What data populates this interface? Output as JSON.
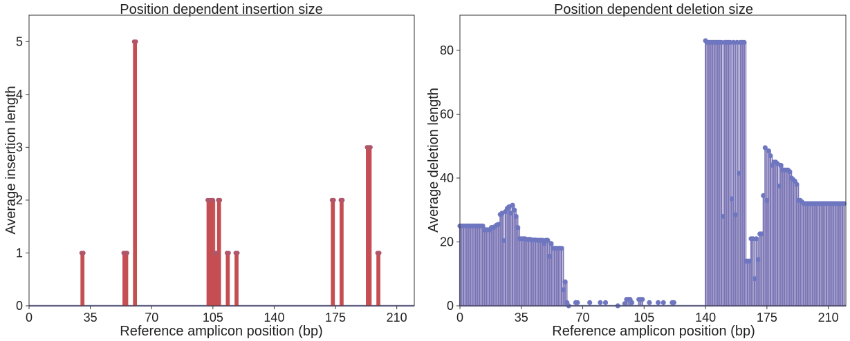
{
  "colors": {
    "insertion": "#c44e52",
    "insertion_marker": "#b0566a",
    "deletion": "#7b75b5",
    "deletion_marker": "#6f76c0",
    "baseline": "#8e8fc4"
  },
  "chart_data": [
    {
      "type": "line",
      "title": "Position dependent insertion size",
      "xlabel": "Reference amplicon position (bp)",
      "ylabel": "Average insertion length",
      "xlim": [
        0,
        220
      ],
      "ylim": [
        0,
        5.5
      ],
      "xticks": [
        0,
        35,
        70,
        105,
        140,
        175,
        210
      ],
      "yticks": [
        0,
        1,
        2,
        3,
        4,
        5
      ],
      "grid": false,
      "baseline": 0,
      "points": [
        {
          "x": 30,
          "y": 1
        },
        {
          "x": 31,
          "y": 1
        },
        {
          "x": 54,
          "y": 1
        },
        {
          "x": 55,
          "y": 1
        },
        {
          "x": 56,
          "y": 1
        },
        {
          "x": 60,
          "y": 5
        },
        {
          "x": 61,
          "y": 5
        },
        {
          "x": 102,
          "y": 2
        },
        {
          "x": 103,
          "y": 2
        },
        {
          "x": 104,
          "y": 2
        },
        {
          "x": 105,
          "y": 2
        },
        {
          "x": 106,
          "y": 1
        },
        {
          "x": 107,
          "y": 1
        },
        {
          "x": 108,
          "y": 2
        },
        {
          "x": 109,
          "y": 2
        },
        {
          "x": 113,
          "y": 1
        },
        {
          "x": 114,
          "y": 1
        },
        {
          "x": 118,
          "y": 1
        },
        {
          "x": 119,
          "y": 1
        },
        {
          "x": 173,
          "y": 2
        },
        {
          "x": 174,
          "y": 2
        },
        {
          "x": 178,
          "y": 2
        },
        {
          "x": 179,
          "y": 2
        },
        {
          "x": 193,
          "y": 3
        },
        {
          "x": 194,
          "y": 3
        },
        {
          "x": 195,
          "y": 3
        },
        {
          "x": 199,
          "y": 1
        },
        {
          "x": 200,
          "y": 1
        }
      ]
    },
    {
      "type": "line",
      "title": "Position dependent deletion size",
      "xlabel": "Reference amplicon position (bp)",
      "ylabel": "Average deletion length",
      "xlim": [
        0,
        220
      ],
      "ylim": [
        0,
        91
      ],
      "xticks": [
        0,
        35,
        70,
        105,
        140,
        175,
        210
      ],
      "yticks": [
        0,
        20,
        40,
        60,
        80
      ],
      "grid": false,
      "baseline": 0,
      "points": [
        {
          "x": 0,
          "y": 25
        },
        {
          "x": 1,
          "y": 25
        },
        {
          "x": 2,
          "y": 25
        },
        {
          "x": 3,
          "y": 25
        },
        {
          "x": 4,
          "y": 25
        },
        {
          "x": 5,
          "y": 25
        },
        {
          "x": 6,
          "y": 25
        },
        {
          "x": 7,
          "y": 25
        },
        {
          "x": 8,
          "y": 25
        },
        {
          "x": 9,
          "y": 25
        },
        {
          "x": 10,
          "y": 25
        },
        {
          "x": 11,
          "y": 25
        },
        {
          "x": 12,
          "y": 25
        },
        {
          "x": 13,
          "y": 25
        },
        {
          "x": 14,
          "y": 23.8
        },
        {
          "x": 15,
          "y": 23.8
        },
        {
          "x": 16,
          "y": 23.8
        },
        {
          "x": 17,
          "y": 23.8
        },
        {
          "x": 18,
          "y": 24.5
        },
        {
          "x": 19,
          "y": 24.5
        },
        {
          "x": 20,
          "y": 24.8
        },
        {
          "x": 21,
          "y": 25.3
        },
        {
          "x": 22,
          "y": 25.5
        },
        {
          "x": 23,
          "y": 28.6
        },
        {
          "x": 24,
          "y": 29
        },
        {
          "x": 25,
          "y": 20.4
        },
        {
          "x": 26,
          "y": 29.5
        },
        {
          "x": 27,
          "y": 30.5
        },
        {
          "x": 28,
          "y": 31
        },
        {
          "x": 29,
          "y": 29
        },
        {
          "x": 30,
          "y": 31.5
        },
        {
          "x": 31,
          "y": 30
        },
        {
          "x": 32,
          "y": 28
        },
        {
          "x": 33,
          "y": 24.5
        },
        {
          "x": 34,
          "y": 21
        },
        {
          "x": 35,
          "y": 21
        },
        {
          "x": 36,
          "y": 21
        },
        {
          "x": 37,
          "y": 21
        },
        {
          "x": 38,
          "y": 20.8
        },
        {
          "x": 39,
          "y": 20.8
        },
        {
          "x": 40,
          "y": 20.8
        },
        {
          "x": 41,
          "y": 20.6
        },
        {
          "x": 42,
          "y": 20.6
        },
        {
          "x": 43,
          "y": 20.6
        },
        {
          "x": 44,
          "y": 20.5
        },
        {
          "x": 45,
          "y": 20.5
        },
        {
          "x": 46,
          "y": 20.5
        },
        {
          "x": 47,
          "y": 20.5
        },
        {
          "x": 48,
          "y": 19.5
        },
        {
          "x": 49,
          "y": 20.5
        },
        {
          "x": 50,
          "y": 20.5
        },
        {
          "x": 51,
          "y": 15.5
        },
        {
          "x": 52,
          "y": 19.5
        },
        {
          "x": 53,
          "y": 18
        },
        {
          "x": 54,
          "y": 18
        },
        {
          "x": 55,
          "y": 18
        },
        {
          "x": 56,
          "y": 18
        },
        {
          "x": 57,
          "y": 18
        },
        {
          "x": 58,
          "y": 18
        },
        {
          "x": 59,
          "y": 5
        },
        {
          "x": 60,
          "y": 7.5
        },
        {
          "x": 61,
          "y": 1
        },
        {
          "x": 62,
          "y": 0
        },
        {
          "x": 66,
          "y": 1
        },
        {
          "x": 67,
          "y": 1
        },
        {
          "x": 74,
          "y": 1
        },
        {
          "x": 80,
          "y": 1
        },
        {
          "x": 83,
          "y": 1
        },
        {
          "x": 90,
          "y": 0
        },
        {
          "x": 94,
          "y": 0.7
        },
        {
          "x": 95,
          "y": 2
        },
        {
          "x": 96,
          "y": 2
        },
        {
          "x": 97,
          "y": 2
        },
        {
          "x": 98,
          "y": 1
        },
        {
          "x": 102,
          "y": 2
        },
        {
          "x": 103,
          "y": 2
        },
        {
          "x": 104,
          "y": 2
        },
        {
          "x": 108,
          "y": 1
        },
        {
          "x": 113,
          "y": 1
        },
        {
          "x": 116,
          "y": 1
        },
        {
          "x": 121,
          "y": 1
        },
        {
          "x": 122,
          "y": 1
        },
        {
          "x": 140,
          "y": 83
        },
        {
          "x": 141,
          "y": 82.5
        },
        {
          "x": 142,
          "y": 82.5
        },
        {
          "x": 143,
          "y": 82.5
        },
        {
          "x": 144,
          "y": 82.5
        },
        {
          "x": 145,
          "y": 82.5
        },
        {
          "x": 146,
          "y": 82.5
        },
        {
          "x": 147,
          "y": 82.5
        },
        {
          "x": 148,
          "y": 82.5
        },
        {
          "x": 149,
          "y": 82.5
        },
        {
          "x": 150,
          "y": 28
        },
        {
          "x": 151,
          "y": 82.5
        },
        {
          "x": 152,
          "y": 82.5
        },
        {
          "x": 153,
          "y": 82.5
        },
        {
          "x": 154,
          "y": 82.5
        },
        {
          "x": 155,
          "y": 33.5
        },
        {
          "x": 156,
          "y": 82.5
        },
        {
          "x": 157,
          "y": 28.5
        },
        {
          "x": 158,
          "y": 82.5
        },
        {
          "x": 159,
          "y": 41.5
        },
        {
          "x": 160,
          "y": 82.5
        },
        {
          "x": 161,
          "y": 82.5
        },
        {
          "x": 162,
          "y": 82.5
        },
        {
          "x": 163,
          "y": 14
        },
        {
          "x": 164,
          "y": 14
        },
        {
          "x": 165,
          "y": 14
        },
        {
          "x": 166,
          "y": 21
        },
        {
          "x": 167,
          "y": 21
        },
        {
          "x": 168,
          "y": 8.5
        },
        {
          "x": 169,
          "y": 21
        },
        {
          "x": 170,
          "y": 14.5
        },
        {
          "x": 171,
          "y": 22.5
        },
        {
          "x": 172,
          "y": 22.5
        },
        {
          "x": 173,
          "y": 34.5
        },
        {
          "x": 174,
          "y": 49.5
        },
        {
          "x": 175,
          "y": 33
        },
        {
          "x": 176,
          "y": 48.5
        },
        {
          "x": 177,
          "y": 47
        },
        {
          "x": 178,
          "y": 44
        },
        {
          "x": 179,
          "y": 45
        },
        {
          "x": 180,
          "y": 45
        },
        {
          "x": 181,
          "y": 44.5
        },
        {
          "x": 182,
          "y": 37.5
        },
        {
          "x": 183,
          "y": 44
        },
        {
          "x": 184,
          "y": 42.5
        },
        {
          "x": 185,
          "y": 42.5
        },
        {
          "x": 186,
          "y": 42.5
        },
        {
          "x": 187,
          "y": 42.5
        },
        {
          "x": 188,
          "y": 42
        },
        {
          "x": 189,
          "y": 40
        },
        {
          "x": 190,
          "y": 39.5
        },
        {
          "x": 191,
          "y": 39
        },
        {
          "x": 192,
          "y": 38
        },
        {
          "x": 193,
          "y": 33
        },
        {
          "x": 194,
          "y": 33
        },
        {
          "x": 195,
          "y": 32.5
        },
        {
          "x": 196,
          "y": 32
        },
        {
          "x": 197,
          "y": 32
        },
        {
          "x": 198,
          "y": 32
        },
        {
          "x": 199,
          "y": 32
        },
        {
          "x": 200,
          "y": 32
        },
        {
          "x": 201,
          "y": 32
        },
        {
          "x": 202,
          "y": 32
        },
        {
          "x": 203,
          "y": 32
        },
        {
          "x": 204,
          "y": 32
        },
        {
          "x": 205,
          "y": 32
        },
        {
          "x": 206,
          "y": 32
        },
        {
          "x": 207,
          "y": 32
        },
        {
          "x": 208,
          "y": 32
        },
        {
          "x": 209,
          "y": 32
        },
        {
          "x": 210,
          "y": 32
        },
        {
          "x": 211,
          "y": 32
        },
        {
          "x": 212,
          "y": 32
        },
        {
          "x": 213,
          "y": 32
        },
        {
          "x": 214,
          "y": 32
        },
        {
          "x": 215,
          "y": 32
        },
        {
          "x": 216,
          "y": 32
        },
        {
          "x": 217,
          "y": 32
        },
        {
          "x": 218,
          "y": 32
        },
        {
          "x": 219,
          "y": 32
        }
      ]
    }
  ]
}
